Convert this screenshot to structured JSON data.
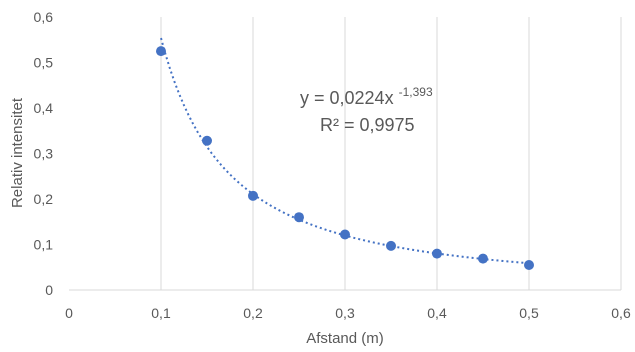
{
  "chart_data": {
    "type": "scatter",
    "xlabel": "Afstand (m)",
    "ylabel": "Relativ intensitet",
    "xlim": [
      0,
      0.6
    ],
    "ylim": [
      0,
      0.6
    ],
    "x_ticks": [
      "0",
      "0,1",
      "0,2",
      "0,3",
      "0,4",
      "0,5",
      "0,6"
    ],
    "y_ticks": [
      "0",
      "0,1",
      "0,2",
      "0,3",
      "0,4",
      "0,5",
      "0,6"
    ],
    "grid": "vertical",
    "marker_color": "#4472C4",
    "trendline_color": "#4472C4",
    "gridline_color": "#D9D9D9",
    "text_color": "#595959",
    "series": [
      {
        "x": [
          0.1,
          0.15,
          0.2,
          0.25,
          0.3,
          0.35,
          0.4,
          0.45,
          0.5
        ],
        "y": [
          0.525,
          0.328,
          0.207,
          0.16,
          0.122,
          0.097,
          0.08,
          0.069,
          0.055
        ]
      }
    ],
    "trendline": {
      "type": "power",
      "coefficient": 0.0224,
      "exponent": -1.393,
      "x_range": [
        0.1,
        0.5
      ],
      "equation_base": "y = 0,0224x",
      "equation_exponent": "-1,393",
      "r_squared_label": "R² = 0,9975"
    }
  }
}
